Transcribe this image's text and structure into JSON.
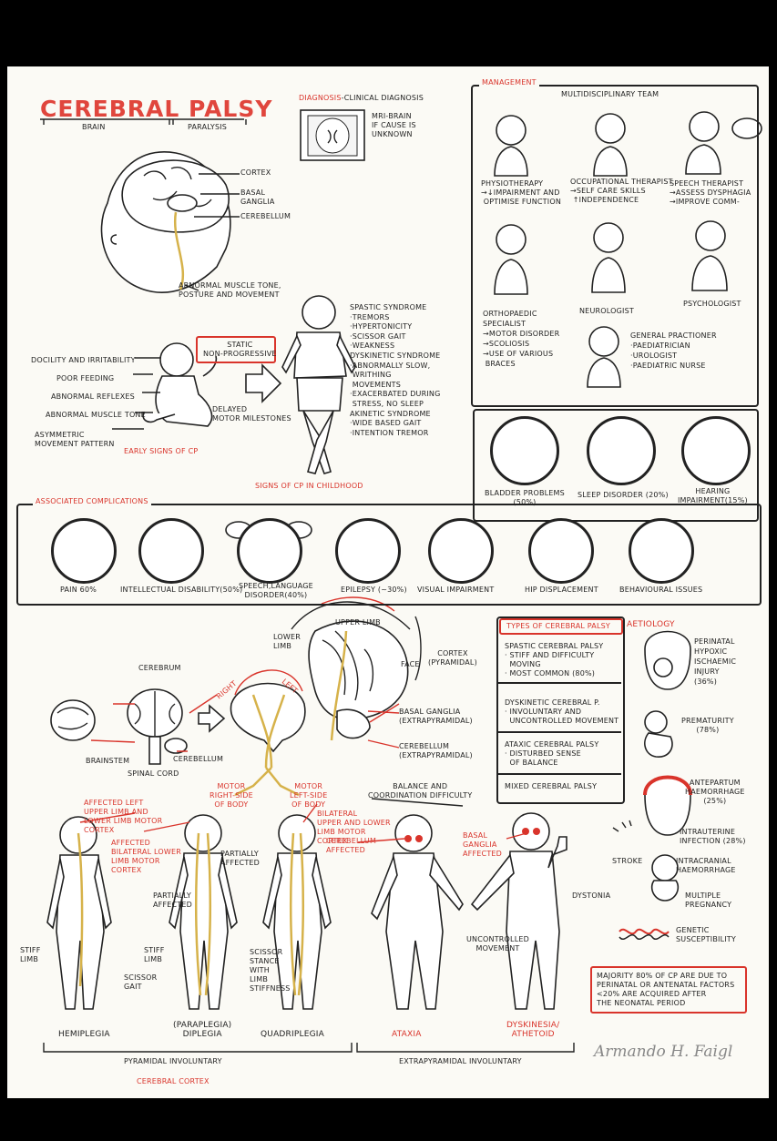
{
  "title": "CEREBRAL PALSY",
  "subtitle_brain": "BRAIN",
  "subtitle_paralysis": "PARALYSIS",
  "brain_labels": {
    "cortex": "CORTEX",
    "basal": "BASAL\nGANGLIA",
    "cerebellum": "CEREBELLUM",
    "abnormal": "ABNORMAL MUSCLE TONE,\nPOSTURE AND MOVEMENT"
  },
  "diagnosis": {
    "head": "DIAGNOSIS",
    "rest": "-CLINICAL DIAGNOSIS",
    "mri": "MRI-BRAIN\nIF CAUSE IS\nUNKNOWN"
  },
  "early_signs": {
    "items": [
      "DOCILITY AND IRRITABILITY",
      "POOR FEEDING",
      "ABNORMAL REFLEXES",
      "ABNORMAL MUSCLE TONE",
      "ASYMMETRIC\nMOVEMENT PATTERN"
    ],
    "label": "EARLY SIGNS OF CP",
    "static": "STATIC\nNON-PROGRESSIVE",
    "delayed": "DELAYED\nMOTOR MILESTONES"
  },
  "childhood": {
    "label": "SIGNS OF CP IN CHILDHOOD",
    "text": "SPASTIC SYNDROME\n·TREMORS\n·HYPERTONICITY\n·SCISSOR GAIT\n·WEAKNESS\nDYSKINETIC SYNDROME\n·ABNORMALLY SLOW,\n WRITHING\n MOVEMENTS\n·EXACERBATED DURING\n STRESS, NO SLEEP\nAKINETIC SYNDROME\n·WIDE BASED GAIT\n·INTENTION TREMOR"
  },
  "management": {
    "head": "MANAGEMENT",
    "team": "MULTIDISCIPLINARY TEAM",
    "physio": "PHYSIOTHERAPY\n→↓IMPAIRMENT AND\n OPTIMISE FUNCTION",
    "ot": "OCCUPATIONAL THERAPIST\n→SELF CARE SKILLS\n ↑INDEPENDENCE",
    "speech": "SPEECH THERAPIST\n→ASSESS DYSPHAGIA\n→IMPROVE COMM-",
    "ortho": "ORTHOPAEDIC\nSPECIALIST\n→MOTOR DISORDER\n→SCOLIOSIS\n→USE OF VARIOUS\n BRACES",
    "neuro": "NEUROLOGIST",
    "psych": "PSYCHOLOGIST",
    "gp": "GENERAL PRACTIONER\n·PAEDIATRICIAN\n·UROLOGIST\n·PAEDIATRIC NURSE"
  },
  "other": {
    "bladder": "BLADDER PROBLEMS\n(50%)",
    "sleep": "SLEEP DISORDER (20%)",
    "hearing": "HEARING\nIMPAIRMENT(15%)"
  },
  "complications": {
    "head": "ASSOCIATED COMPLICATIONS",
    "items": [
      "PAIN 60%",
      "INTELLECTUAL DISABILITY(50%)",
      "SPEECH,LANGUAGE\nDISORDER(40%)",
      "EPILEPSY (~30%)",
      "VISUAL IMPAIRMENT",
      "HIP DISPLACEMENT",
      "BEHAVIOURAL ISSUES"
    ]
  },
  "anatomy": {
    "cerebrum": "CEREBRUM",
    "brainstem": "BRAINSTEM",
    "spinal": "SPINAL CORD",
    "cerebellum": "CEREBELLUM",
    "right": "RIGHT",
    "left": "LEFT",
    "motor_right": "MOTOR\nRIGHT-SIDE\nOF BODY",
    "motor_left": "MOTOR\nLEFT-SIDE\nOF BODY",
    "upper": "UPPER LIMB",
    "lower": "LOWER\nLIMB",
    "face": "FACE",
    "cortex": "CORTEX\n(PYRAMIDAL)",
    "basal": "BASAL GANGLIA\n(EXTRAPYRAMIDAL)",
    "cereb2": "CEREBELLUM\n(EXTRAPYRAMIDAL)"
  },
  "types": {
    "head": "TYPES OF CEREBRAL PALSY",
    "spastic": "SPASTIC CEREBRAL PALSY\n· STIFF AND DIFFICULTY\n  MOVING\n· MOST COMMON (80%)",
    "dysk": "DYSKINETIC CEREBRAL P.\n· INVOLUNTARY AND\n  UNCONTROLLED MOVEMENT",
    "ataxic": "ATAXIC CEREBRAL PALSY\n· DISTURBED SENSE\n  OF BALANCE",
    "mixed": "MIXED CEREBRAL PALSY"
  },
  "aetiology": {
    "head": "AETIOLOGY",
    "perinatal": "PERINATAL\nHYPOXIC\nISCHAEMIC\nINJURY\n(36%)",
    "prem": "PREMATURITY\n(78%)",
    "ante": "ANTEPARTUM\nHAEMORRHAGE\n(25%)",
    "intra": "INTRAUTERINE\nINFECTION (28%)",
    "stroke": "STROKE",
    "intracranial": "INTRACRANIAL\nHAEMORRHAGE",
    "multiple": "MULTIPLE\nPREGNANCY",
    "genetic": "GENETIC\nSUSCEPTIBILITY",
    "note": "MAJORITY 80% OF CP ARE DUE TO\nPERINATAL OR ANTENATAL FACTORS\n<20% ARE ACQUIRED AFTER\nTHE NEONATAL PERIOD"
  },
  "bodies": {
    "hemi_note": "AFFECTED LEFT\nUPPER LIMB AND\nLOWER LIMB MOTOR\nCORTEX",
    "di_note": "AFFECTED\nBILATERAL LOWER\nLIMB MOTOR\nCORTEX",
    "quad_note": "BILATERAL\nUPPER AND LOWER\nLIMB MOTOR\nCORTEX",
    "partially1": "PARTIALLY\nAFFECTED",
    "partially2": "PARTIALLY\nAFFECTED",
    "stiff1": "STIFF\nLIMB",
    "scissor1": "SCISSOR\nGAIT",
    "stiff2": "STIFF\nLIMB",
    "scissor_stance": "SCISSOR\nSTANCE\nWITH\nLIMB\nSTIFFNESS",
    "balance": "BALANCE AND\nCOORDINATION DIFFICULTY",
    "cereb_aff": "CEREBELLUM\nAFFECTED",
    "basal_aff": "BASAL\nGANGLIA\nAFFECTED",
    "dystonia": "DYSTONIA",
    "uncontrolled": "UNCONTROLLED\nMOVEMENT",
    "hemiplegia": "HEMIPLEGIA",
    "diplegia": "(PARAPLEGIA)\nDIPLEGIA",
    "quadriplegia": "QUADRIPLEGIA",
    "ataxia": "ATAXIA",
    "dyskinesia": "DYSKINESIA/\nATHETOID",
    "pyramidal": "PYRAMIDAL INVOLUNTARY",
    "extrapyramidal": "EXTRAPYRAMIDAL INVOLUNTARY",
    "cortex": "CEREBRAL CORTEX"
  },
  "signature": "Armando H. Faigl"
}
